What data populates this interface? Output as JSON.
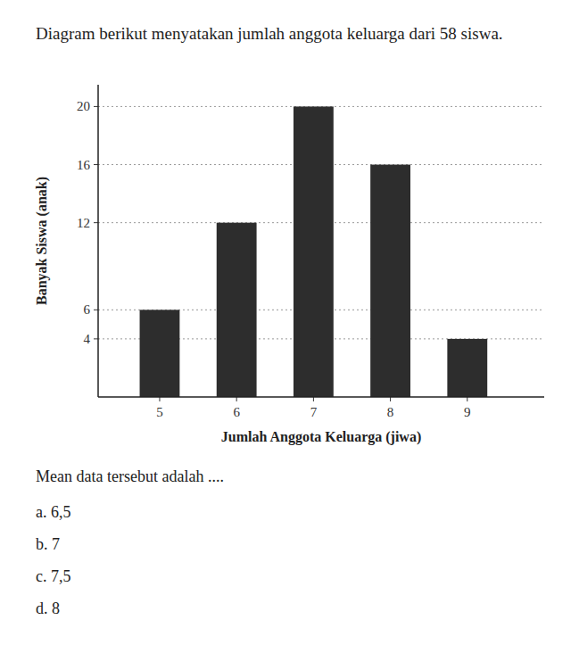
{
  "chart_data": {
    "type": "bar",
    "title": "Diagram berikut menyatakan jumlah anggota keluarga dari 58 siswa.",
    "x": [
      5,
      6,
      7,
      8,
      9
    ],
    "values": [
      6,
      12,
      20,
      16,
      4
    ],
    "color": "#2d2d2d",
    "xlabel": "Jumlah Anggota Keluarga (jiwa)",
    "ylabel": "Banyak Siswa (anak)",
    "xlim": [
      4.2,
      10.0
    ],
    "xticks": [
      5,
      6,
      7,
      8,
      9
    ],
    "ylim": [
      0,
      21.5
    ],
    "yticks": [
      4,
      6,
      12,
      16,
      20
    ],
    "grid": true,
    "annotations": [
      "Mean data tersebut adalah ....",
      "a. 6,5",
      "b. 7",
      "c. 7,5",
      "d. 8"
    ]
  }
}
